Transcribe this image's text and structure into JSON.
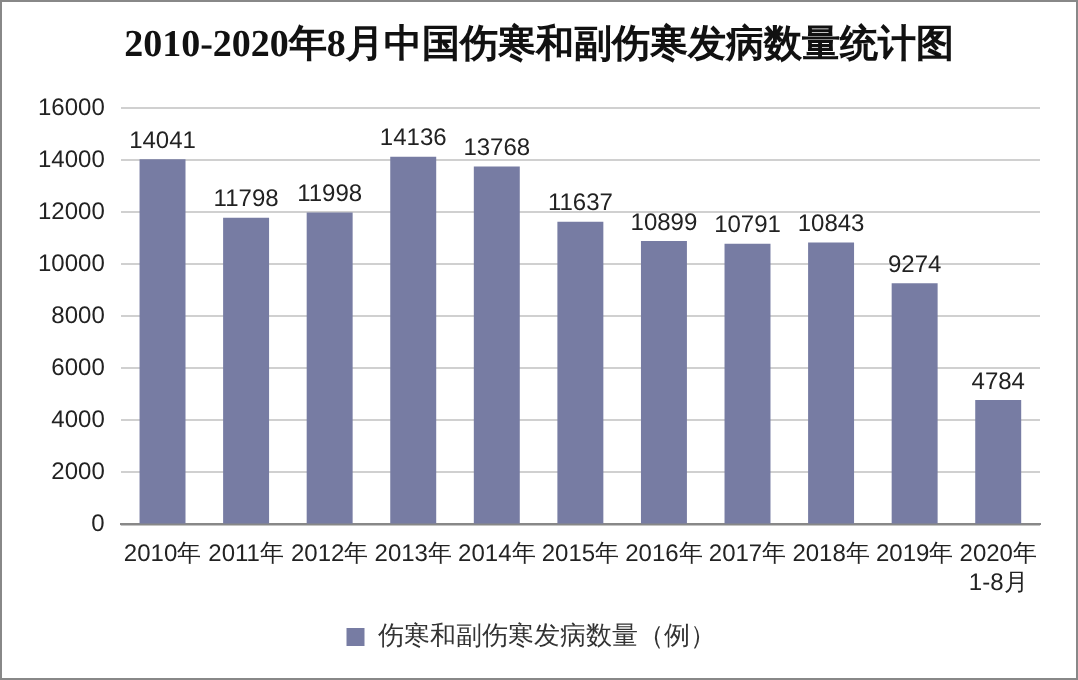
{
  "chart_data": {
    "type": "bar",
    "title": "2010-2020年8月中国伤寒和副伤寒发病数量统计图",
    "categories": [
      "2010年",
      "2011年",
      "2012年",
      "2013年",
      "2014年",
      "2015年",
      "2016年",
      "2017年",
      "2018年",
      "2019年",
      "2020年1-8月"
    ],
    "series": [
      {
        "name": "伤寒和副伤寒发病数量（例）",
        "color": "#777ca3",
        "values": [
          14041,
          11798,
          11998,
          14136,
          13768,
          11637,
          10899,
          10791,
          10843,
          9274,
          4784
        ]
      }
    ],
    "ylim": [
      0,
      16000
    ],
    "yticks": [
      0,
      2000,
      4000,
      6000,
      8000,
      10000,
      12000,
      14000,
      16000
    ],
    "grid": "y",
    "legend": "bottom",
    "data_labels": true
  }
}
